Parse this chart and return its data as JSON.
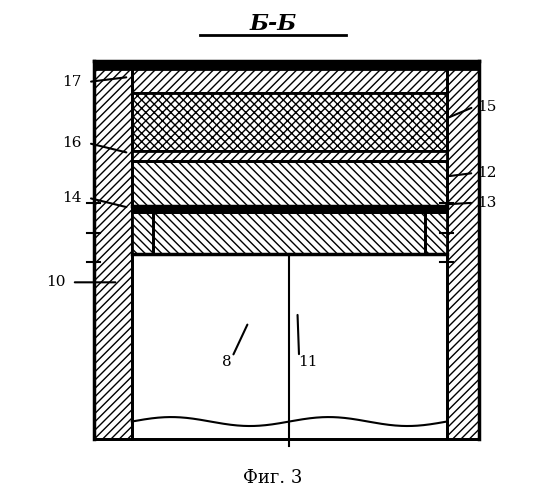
{
  "title": "Б-Б",
  "caption": "Фиг. 3",
  "fig_width": 5.46,
  "fig_height": 5.0,
  "dpi": 100,
  "bg_color": "#ffffff",
  "line_color": "#000000"
}
